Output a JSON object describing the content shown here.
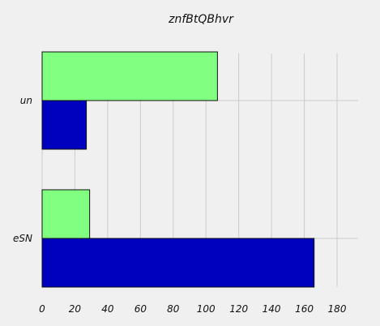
{
  "chart_data": {
    "type": "bar",
    "orientation": "horizontal",
    "title": "znfBtQBhvr",
    "categories": [
      "un",
      "eSN"
    ],
    "series": [
      {
        "values": [
          107,
          29
        ],
        "color": "#80ff80"
      },
      {
        "values": [
          27,
          166
        ],
        "color": "#0000bf"
      }
    ],
    "xlim": [
      0,
      180
    ],
    "xticks": [
      "0",
      "20",
      "40",
      "60",
      "80",
      "100",
      "120",
      "140",
      "160",
      "180"
    ],
    "xlabel": "",
    "ylabel": "",
    "grid": true,
    "legend": "none"
  }
}
